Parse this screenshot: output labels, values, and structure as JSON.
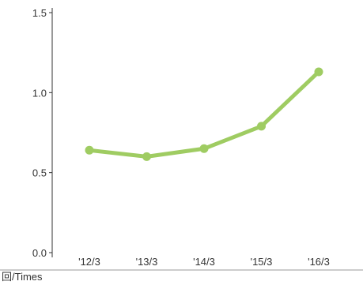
{
  "chart_data": {
    "type": "line",
    "categories": [
      "'12/3",
      "'13/3",
      "'14/3",
      "'15/3",
      "'16/3"
    ],
    "series": [
      {
        "values": [
          0.64,
          0.6,
          0.65,
          0.79,
          1.13
        ]
      }
    ],
    "yticks": [
      "0.0",
      "0.5",
      "1.0",
      "1.5"
    ],
    "ylim": [
      0,
      1.5
    ],
    "unit_label": "回/Times",
    "grid": false,
    "legend": "none",
    "line_color": "#9fcc62",
    "axis_color": "#333333",
    "baseline_color": "#999999"
  }
}
